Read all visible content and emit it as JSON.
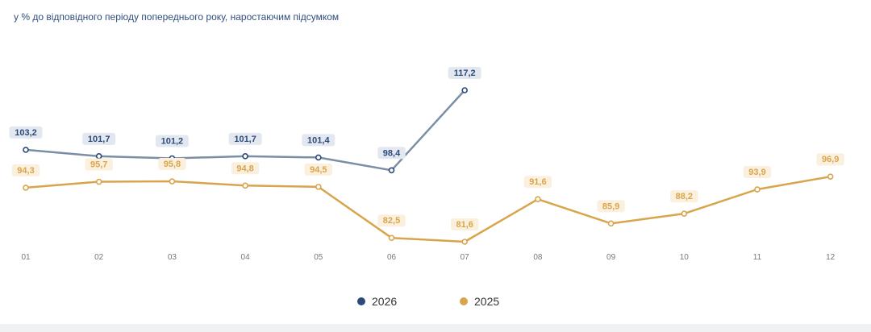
{
  "subtitle": "у % до відповідного періоду попереднього року, наростаючим підсумком",
  "chart_data": {
    "type": "line",
    "title": "",
    "xlabel": "",
    "ylabel": "",
    "categories": [
      "01",
      "02",
      "03",
      "04",
      "05",
      "06",
      "07",
      "08",
      "09",
      "10",
      "11",
      "12"
    ],
    "ylim": [
      80,
      120
    ],
    "grid": false,
    "legend_position": "bottom",
    "series": [
      {
        "name": "2026",
        "color": "#7a8ea6",
        "marker_color": "#2c4a78",
        "label_bg": "#e3e8f0",
        "label_color": "#2c4a78",
        "values": [
          103.2,
          101.7,
          101.2,
          101.7,
          101.4,
          98.4,
          117.2,
          null,
          null,
          null,
          null,
          null
        ],
        "labels": [
          "103,2",
          "101,7",
          "101,2",
          "101,7",
          "101,4",
          "98,4",
          "117,2",
          "",
          "",
          "",
          "",
          ""
        ]
      },
      {
        "name": "2025",
        "color": "#d9a54c",
        "marker_color": "#d9a54c",
        "label_bg": "#fbf0dd",
        "label_color": "#d9a54c",
        "values": [
          94.3,
          95.7,
          95.8,
          94.8,
          94.5,
          82.5,
          81.6,
          91.6,
          85.9,
          88.2,
          93.9,
          96.9
        ],
        "labels": [
          "94,3",
          "95,7",
          "95,8",
          "94,8",
          "94,5",
          "82,5",
          "81,6",
          "91,6",
          "85,9",
          "88,2",
          "93,9",
          "96,9"
        ]
      }
    ]
  },
  "legend": [
    {
      "label": "2026",
      "color": "#2c4a78"
    },
    {
      "label": "2025",
      "color": "#d9a54c"
    }
  ]
}
